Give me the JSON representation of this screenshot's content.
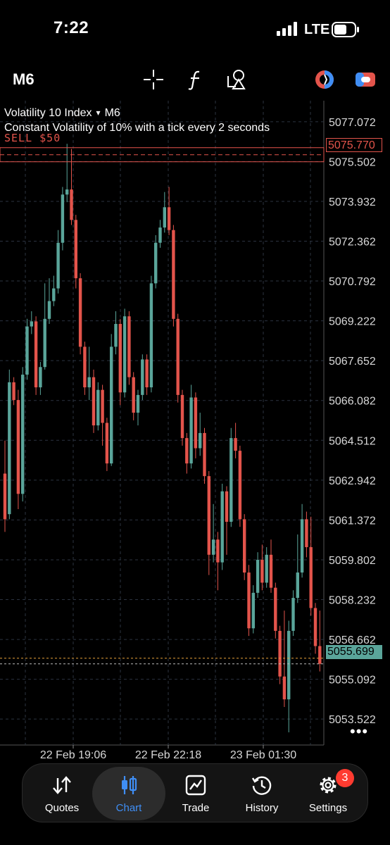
{
  "status_bar": {
    "time": "7:22",
    "carrier": "LTE"
  },
  "toolbar": {
    "timeframe": "M6",
    "icons": [
      "crosshair-icon",
      "indicator-f-icon",
      "objects-icon",
      "account-switch-icon",
      "trade-toggle-icon"
    ]
  },
  "chart_info": {
    "symbol": "Volatility 10 Index",
    "dropdown_glyph": "▾",
    "timeframe": "M6",
    "description": "Constant Volatility of 10% with a tick every 2 seconds",
    "sell_label": "SELL $50"
  },
  "price_tags": {
    "sell_price": "5075.770",
    "bid_price": "5055.699"
  },
  "more_glyph": "•••",
  "nav": {
    "items": [
      {
        "label": "Quotes",
        "icon": "quotes-arrows-icon"
      },
      {
        "label": "Chart",
        "icon": "candlestick-icon",
        "active": true
      },
      {
        "label": "Trade",
        "icon": "trade-chart-icon"
      },
      {
        "label": "History",
        "icon": "history-clock-icon"
      },
      {
        "label": "Settings",
        "icon": "gear-icon"
      }
    ],
    "settings_badge": "3"
  },
  "colors": {
    "bull": "#5aa59a",
    "bear": "#e3544b",
    "background": "#000000",
    "active_nav": "#3f8ef5"
  },
  "chart_data": {
    "type": "candlestick",
    "symbol": "Volatility 10 Index",
    "timeframe": "M6",
    "y_ticks": [
      "5077.072",
      "5075.502",
      "5073.932",
      "5072.362",
      "5070.792",
      "5069.222",
      "5067.652",
      "5066.082",
      "5064.512",
      "5062.942",
      "5061.372",
      "5059.802",
      "5058.232",
      "5056.662",
      "5055.092",
      "5053.522"
    ],
    "x_ticks": [
      "22 Feb 19:06",
      "22 Feb 22:18",
      "23 Feb 01:30"
    ],
    "ylim": [
      5052.5,
      5077.9
    ],
    "grid": true,
    "sell_line": 5075.77,
    "bid_line": 5055.699,
    "ask_line": 5055.92,
    "candles": [
      {
        "o": 5063.2,
        "c": 5061.4,
        "h": 5064.5,
        "l": 5060.9
      },
      {
        "o": 5061.6,
        "c": 5066.8,
        "h": 5067.3,
        "l": 5061.4
      },
      {
        "o": 5066.8,
        "c": 5066.1,
        "h": 5067.0,
        "l": 5065.9
      },
      {
        "o": 5066.1,
        "c": 5062.4,
        "h": 5066.5,
        "l": 5061.8
      },
      {
        "o": 5062.4,
        "c": 5067.1,
        "h": 5067.4,
        "l": 5062.1
      },
      {
        "o": 5067.1,
        "c": 5069.0,
        "h": 5069.3,
        "l": 5066.9
      },
      {
        "o": 5069.0,
        "c": 5069.2,
        "h": 5069.6,
        "l": 5068.7
      },
      {
        "o": 5069.2,
        "c": 5066.6,
        "h": 5069.4,
        "l": 5066.3
      },
      {
        "o": 5066.6,
        "c": 5067.4,
        "h": 5067.6,
        "l": 5066.3
      },
      {
        "o": 5067.4,
        "c": 5069.3,
        "h": 5070.7,
        "l": 5067.3
      },
      {
        "o": 5069.3,
        "c": 5070.0,
        "h": 5070.9,
        "l": 5069.1
      },
      {
        "o": 5070.0,
        "c": 5070.5,
        "h": 5071.0,
        "l": 5069.8
      },
      {
        "o": 5070.5,
        "c": 5072.3,
        "h": 5072.8,
        "l": 5070.3
      },
      {
        "o": 5072.3,
        "c": 5074.2,
        "h": 5074.5,
        "l": 5072.0
      },
      {
        "o": 5074.2,
        "c": 5074.4,
        "h": 5076.2,
        "l": 5073.9
      },
      {
        "o": 5074.4,
        "c": 5073.2,
        "h": 5076.0,
        "l": 5073.0
      },
      {
        "o": 5073.2,
        "c": 5070.9,
        "h": 5073.4,
        "l": 5070.5
      },
      {
        "o": 5070.9,
        "c": 5068.2,
        "h": 5071.1,
        "l": 5067.9
      },
      {
        "o": 5068.2,
        "c": 5066.6,
        "h": 5068.4,
        "l": 5066.3
      },
      {
        "o": 5066.6,
        "c": 5067.0,
        "h": 5068.2,
        "l": 5066.1
      },
      {
        "o": 5067.0,
        "c": 5065.1,
        "h": 5067.3,
        "l": 5064.8
      },
      {
        "o": 5065.1,
        "c": 5066.5,
        "h": 5066.8,
        "l": 5064.9
      },
      {
        "o": 5066.5,
        "c": 5065.2,
        "h": 5066.7,
        "l": 5064.3
      },
      {
        "o": 5065.2,
        "c": 5063.6,
        "h": 5065.4,
        "l": 5063.3
      },
      {
        "o": 5063.6,
        "c": 5068.2,
        "h": 5068.7,
        "l": 5063.5
      },
      {
        "o": 5068.2,
        "c": 5069.1,
        "h": 5069.6,
        "l": 5067.9
      },
      {
        "o": 5069.1,
        "c": 5066.4,
        "h": 5069.3,
        "l": 5065.9
      },
      {
        "o": 5066.4,
        "c": 5069.4,
        "h": 5069.7,
        "l": 5066.2
      },
      {
        "o": 5069.4,
        "c": 5067.0,
        "h": 5069.6,
        "l": 5066.7
      },
      {
        "o": 5067.0,
        "c": 5065.6,
        "h": 5067.2,
        "l": 5065.3
      },
      {
        "o": 5065.6,
        "c": 5066.3,
        "h": 5066.5,
        "l": 5065.1
      },
      {
        "o": 5066.3,
        "c": 5067.7,
        "h": 5067.9,
        "l": 5066.1
      },
      {
        "o": 5067.7,
        "c": 5066.6,
        "h": 5067.9,
        "l": 5066.3
      },
      {
        "o": 5066.6,
        "c": 5070.7,
        "h": 5071.0,
        "l": 5066.4
      },
      {
        "o": 5070.7,
        "c": 5072.3,
        "h": 5072.6,
        "l": 5070.5
      },
      {
        "o": 5072.3,
        "c": 5072.9,
        "h": 5073.2,
        "l": 5072.1
      },
      {
        "o": 5072.9,
        "c": 5073.7,
        "h": 5074.3,
        "l": 5072.7
      },
      {
        "o": 5073.7,
        "c": 5072.8,
        "h": 5074.5,
        "l": 5072.6
      },
      {
        "o": 5072.8,
        "c": 5069.3,
        "h": 5073.0,
        "l": 5069.0
      },
      {
        "o": 5069.3,
        "c": 5066.3,
        "h": 5069.5,
        "l": 5066.0
      },
      {
        "o": 5066.3,
        "c": 5064.6,
        "h": 5066.5,
        "l": 5064.3
      },
      {
        "o": 5064.6,
        "c": 5063.6,
        "h": 5064.8,
        "l": 5063.2
      },
      {
        "o": 5063.6,
        "c": 5066.2,
        "h": 5066.7,
        "l": 5063.4
      },
      {
        "o": 5066.2,
        "c": 5064.2,
        "h": 5066.4,
        "l": 5063.8
      },
      {
        "o": 5064.2,
        "c": 5064.8,
        "h": 5065.6,
        "l": 5063.9
      },
      {
        "o": 5064.8,
        "c": 5063.1,
        "h": 5065.0,
        "l": 5062.8
      },
      {
        "o": 5063.1,
        "c": 5060.0,
        "h": 5063.3,
        "l": 5059.2
      },
      {
        "o": 5060.0,
        "c": 5060.6,
        "h": 5062.0,
        "l": 5059.7
      },
      {
        "o": 5060.6,
        "c": 5059.7,
        "h": 5060.9,
        "l": 5058.6
      },
      {
        "o": 5059.7,
        "c": 5062.5,
        "h": 5062.8,
        "l": 5059.4
      },
      {
        "o": 5062.5,
        "c": 5061.3,
        "h": 5062.7,
        "l": 5060.0
      },
      {
        "o": 5061.3,
        "c": 5064.6,
        "h": 5065.0,
        "l": 5061.1
      },
      {
        "o": 5064.6,
        "c": 5064.1,
        "h": 5065.2,
        "l": 5063.8
      },
      {
        "o": 5064.1,
        "c": 5061.4,
        "h": 5064.3,
        "l": 5061.1
      },
      {
        "o": 5061.4,
        "c": 5059.3,
        "h": 5061.6,
        "l": 5059.0
      },
      {
        "o": 5059.3,
        "c": 5057.1,
        "h": 5059.6,
        "l": 5056.8
      },
      {
        "o": 5057.1,
        "c": 5058.5,
        "h": 5058.8,
        "l": 5056.9
      },
      {
        "o": 5058.5,
        "c": 5059.8,
        "h": 5060.1,
        "l": 5058.3
      },
      {
        "o": 5059.8,
        "c": 5058.9,
        "h": 5060.4,
        "l": 5058.6
      },
      {
        "o": 5058.9,
        "c": 5060.0,
        "h": 5060.3,
        "l": 5058.7
      },
      {
        "o": 5060.0,
        "c": 5058.7,
        "h": 5060.6,
        "l": 5058.5
      },
      {
        "o": 5058.7,
        "c": 5057.0,
        "h": 5058.9,
        "l": 5056.7
      },
      {
        "o": 5057.0,
        "c": 5055.2,
        "h": 5057.2,
        "l": 5054.9
      },
      {
        "o": 5055.2,
        "c": 5054.3,
        "h": 5057.8,
        "l": 5054.0
      },
      {
        "o": 5054.3,
        "c": 5057.0,
        "h": 5057.4,
        "l": 5053.0
      },
      {
        "o": 5057.0,
        "c": 5058.3,
        "h": 5058.6,
        "l": 5056.8
      },
      {
        "o": 5058.3,
        "c": 5059.3,
        "h": 5060.8,
        "l": 5058.1
      },
      {
        "o": 5059.3,
        "c": 5061.4,
        "h": 5062.0,
        "l": 5059.1
      },
      {
        "o": 5061.4,
        "c": 5060.3,
        "h": 5061.7,
        "l": 5059.9
      },
      {
        "o": 5060.3,
        "c": 5057.9,
        "h": 5061.5,
        "l": 5057.6
      },
      {
        "o": 5057.9,
        "c": 5056.4,
        "h": 5058.1,
        "l": 5056.1
      },
      {
        "o": 5056.4,
        "c": 5055.7,
        "h": 5057.8,
        "l": 5055.4
      }
    ]
  }
}
